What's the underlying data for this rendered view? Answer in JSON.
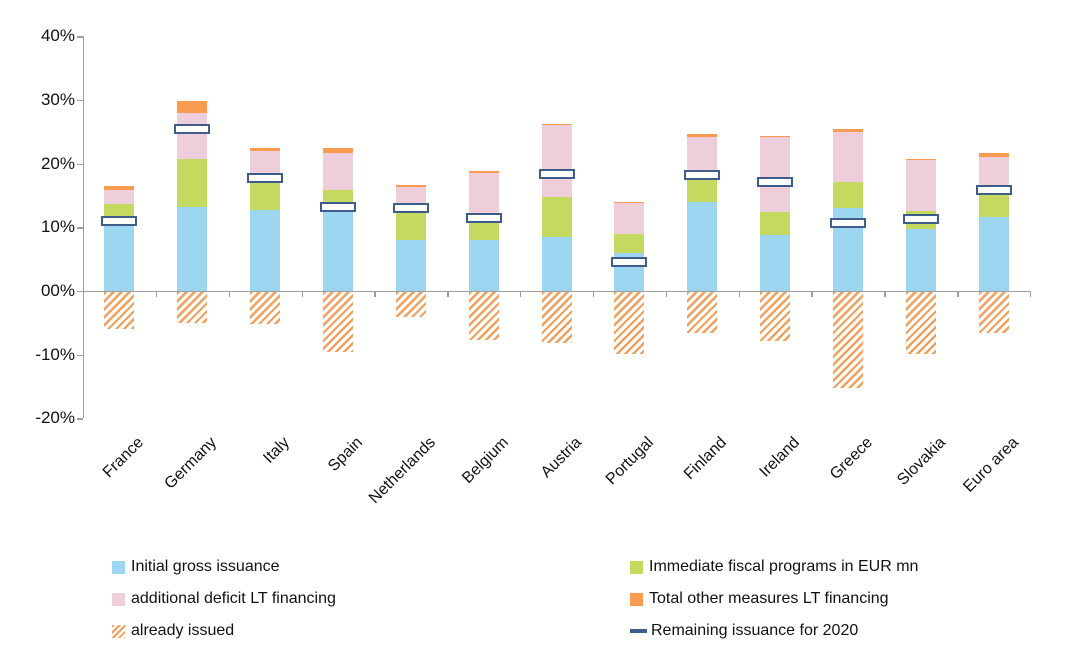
{
  "chart_data": {
    "type": "bar",
    "stacked": true,
    "title": "",
    "xlabel": "",
    "ylabel": "",
    "grid": false,
    "legend_position": "bottom",
    "categories": [
      "France",
      "Germany",
      "Italy",
      "Spain",
      "Netherlands",
      "Belgium",
      "Austria",
      "Portugal",
      "Finland",
      "Ireland",
      "Greece",
      "Slovakia",
      "Euro area"
    ],
    "y_axis": {
      "min": -20,
      "max": 40,
      "tick_step": 10,
      "tick_values": [
        40,
        30,
        20,
        10,
        0,
        -10,
        -20
      ],
      "tick_labels": [
        "40%",
        "30%",
        "20%",
        "10%",
        "00%",
        "-10%",
        "-20%"
      ]
    },
    "series": [
      {
        "name": "Initial gross issuance",
        "role": "stack",
        "color_key": "blue",
        "values": [
          10.3,
          13.2,
          12.7,
          13.0,
          8.0,
          8.0,
          8.5,
          6.0,
          13.9,
          8.8,
          13.1,
          9.8,
          11.6
        ]
      },
      {
        "name": "Immediate fiscal programs in EUR mn",
        "role": "stack",
        "color_key": "green",
        "values": [
          3.4,
          7.5,
          4.3,
          2.8,
          4.4,
          2.8,
          6.2,
          3.0,
          4.8,
          3.6,
          4.0,
          2.8,
          3.5
        ]
      },
      {
        "name": "additional deficit LT financing",
        "role": "stack",
        "color_key": "pink",
        "values": [
          2.2,
          7.2,
          4.9,
          5.9,
          4.0,
          7.8,
          11.3,
          4.8,
          5.5,
          11.8,
          7.8,
          8.0,
          5.9
        ]
      },
      {
        "name": "Total other measures LT financing",
        "role": "stack",
        "color_key": "orange",
        "values": [
          0.6,
          1.9,
          0.6,
          0.7,
          0.2,
          0.2,
          0.2,
          0.2,
          0.4,
          0.2,
          0.6,
          0.2,
          0.7
        ]
      },
      {
        "name": "already issued",
        "role": "negative-hatch",
        "color_key": "hatch_orange",
        "values": [
          -5.7,
          -4.8,
          -5.0,
          -9.3,
          -3.8,
          -7.5,
          -7.9,
          -9.6,
          -6.4,
          -7.6,
          -15.0,
          -9.7,
          -6.3
        ]
      },
      {
        "name": "Remaining issuance for 2020",
        "role": "marker",
        "color_key": "navy",
        "values": [
          11.0,
          25.5,
          17.7,
          13.2,
          13.0,
          11.4,
          18.3,
          4.6,
          18.2,
          17.1,
          10.7,
          11.3,
          15.8
        ]
      }
    ],
    "colors": {
      "blue": "#9cd6f0",
      "green": "#c4d95f",
      "pink": "#efcedb",
      "orange": "#f99b51",
      "hatch_orange": "#f2a05c",
      "navy": "#3e5d8a",
      "axis": "#9e9e9e",
      "text": "#111111"
    }
  },
  "legend": {
    "columns": [
      {
        "items": [
          {
            "label": "Initial gross issuance",
            "swatch": "solid",
            "color_key": "blue"
          },
          {
            "label": "additional deficit LT financing",
            "swatch": "solid",
            "color_key": "pink"
          },
          {
            "label": "already issued",
            "swatch": "hatch",
            "color_key": "hatch_orange"
          }
        ]
      },
      {
        "items": [
          {
            "label": "Immediate fiscal programs in EUR mn",
            "swatch": "solid",
            "color_key": "green"
          },
          {
            "label": "Total other measures LT financing",
            "swatch": "solid",
            "color_key": "orange"
          },
          {
            "label": "Remaining issuance for 2020",
            "swatch": "dash",
            "color_key": "navy"
          }
        ]
      }
    ]
  }
}
